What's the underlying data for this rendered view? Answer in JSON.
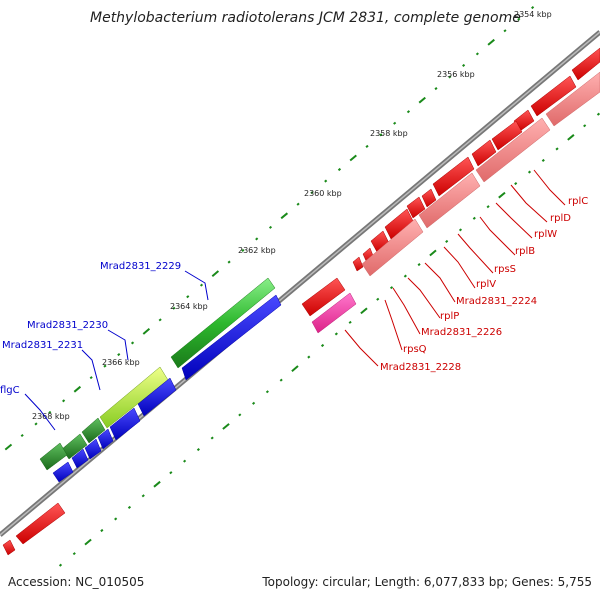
{
  "title": "Methylobacterium radiotolerans JCM 2831, complete genome",
  "footer": {
    "accession": "Accession: NC_010505",
    "summary": "Topology: circular; Length: 6,077,833 bp; Genes: 5,755"
  },
  "colors": {
    "backbone": "#888888",
    "tick": "#1a8a1a",
    "forward_green": "#2db82d",
    "reverse_blue": "#0000ee",
    "forward_red": "#ee0000",
    "reverse_salmon": "#f08080",
    "magenta": "#ee3399",
    "label_blue": "#0000cc",
    "label_red": "#cc0000"
  },
  "ticks": [
    {
      "label": "2354 kbp"
    },
    {
      "label": "2356 kbp"
    },
    {
      "label": "2358 kbp"
    },
    {
      "label": "2360 kbp"
    },
    {
      "label": "2362 kbp"
    },
    {
      "label": "2364 kbp"
    },
    {
      "label": "2366 kbp"
    },
    {
      "label": "2368 kbp"
    }
  ],
  "genes_left": [
    {
      "name": "Mrad2831_2229"
    },
    {
      "name": "Mrad2831_2230"
    },
    {
      "name": "Mrad2831_2231"
    },
    {
      "name": "flgC"
    }
  ],
  "genes_right": [
    {
      "name": "rplC"
    },
    {
      "name": "rplD"
    },
    {
      "name": "rplW"
    },
    {
      "name": "rplB"
    },
    {
      "name": "rpsS"
    },
    {
      "name": "rplV"
    },
    {
      "name": "Mrad2831_2224"
    },
    {
      "name": "rplP"
    },
    {
      "name": "Mrad2831_2226"
    },
    {
      "name": "rpsQ"
    },
    {
      "name": "Mrad2831_2228"
    }
  ]
}
